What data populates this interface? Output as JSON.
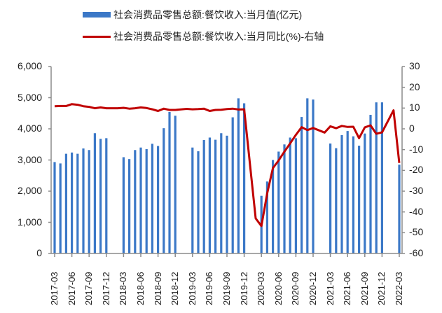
{
  "chart_data": {
    "type": "bar+line",
    "title": "",
    "legend": [
      {
        "name": "社会消费品零售总额:餐饮收入:当月值(亿元)",
        "type": "bar",
        "color": "#3b78c7"
      },
      {
        "name": "社会消费品零售总额:餐饮收入:当月同比(%)-右轴",
        "type": "line",
        "color": "#c00000"
      }
    ],
    "legend_position": "top",
    "grid": false,
    "left_axis": {
      "ylim": [
        0,
        6000
      ],
      "ticks": [
        "0",
        "1,000",
        "2,000",
        "3,000",
        "4,000",
        "5,000",
        "6,000"
      ]
    },
    "right_axis": {
      "ylim": [
        -60,
        30
      ],
      "ticks": [
        "-60",
        "-50",
        "-40",
        "-30",
        "-20",
        "-10",
        "0",
        "10",
        "20",
        "30"
      ]
    },
    "x_tick_labels": [
      "2017-03",
      "2017-06",
      "2017-09",
      "2017-12",
      "2018-03",
      "2018-06",
      "2018-09",
      "2018-12",
      "2019-03",
      "2019-06",
      "2019-09",
      "2019-12",
      "2020-03",
      "2020-06",
      "2020-09",
      "2020-12",
      "2021-03",
      "2021-06",
      "2021-09",
      "2021-12",
      "2022-03"
    ],
    "months": [
      "2017-03",
      "2017-04",
      "2017-05",
      "2017-06",
      "2017-07",
      "2017-08",
      "2017-09",
      "2017-10",
      "2017-11",
      "2017-12",
      "2018-01",
      "2018-02",
      "2018-03",
      "2018-04",
      "2018-05",
      "2018-06",
      "2018-07",
      "2018-08",
      "2018-09",
      "2018-10",
      "2018-11",
      "2018-12",
      "2019-01",
      "2019-02",
      "2019-03",
      "2019-04",
      "2019-05",
      "2019-06",
      "2019-07",
      "2019-08",
      "2019-09",
      "2019-10",
      "2019-11",
      "2019-12",
      "2020-01",
      "2020-02",
      "2020-03",
      "2020-04",
      "2020-05",
      "2020-06",
      "2020-07",
      "2020-08",
      "2020-09",
      "2020-10",
      "2020-11",
      "2020-12",
      "2021-01",
      "2021-02",
      "2021-03",
      "2021-04",
      "2021-05",
      "2021-06",
      "2021-07",
      "2021-08",
      "2021-09",
      "2021-10",
      "2021-11",
      "2021-12",
      "2022-01",
      "2022-02",
      "2022-03"
    ],
    "series": [
      {
        "name": "社会消费品零售总额:餐饮收入:当月值(亿元)",
        "axis": "left",
        "values": [
          2934,
          2890,
          3200,
          3240,
          3200,
          3370,
          3320,
          3860,
          3680,
          3700,
          null,
          null,
          3090,
          3030,
          3320,
          3400,
          3350,
          3520,
          3450,
          4020,
          4540,
          4420,
          null,
          null,
          3400,
          3280,
          3640,
          3720,
          3650,
          3860,
          3780,
          4370,
          4980,
          4820,
          null,
          null,
          1850,
          2310,
          3000,
          3270,
          3500,
          3720,
          3700,
          4380,
          4980,
          4940,
          null,
          null,
          3530,
          3380,
          3800,
          3930,
          3760,
          3460,
          3850,
          4450,
          4850,
          4850,
          null,
          null,
          2850
        ]
      },
      {
        "name": "社会消费品零售总额:餐饮收入:当月同比(%)-右轴",
        "axis": "right",
        "values": [
          10.9,
          11.0,
          11.0,
          11.9,
          11.6,
          10.9,
          10.6,
          9.9,
          10.3,
          9.9,
          null,
          9.9,
          10.1,
          9.7,
          9.9,
          10.3,
          10.0,
          9.4,
          8.6,
          9.7,
          9.1,
          9.1,
          null,
          9.6,
          9.4,
          9.5,
          9.7,
          8.6,
          9.1,
          9.2,
          9.5,
          9.7,
          9.3,
          9.4,
          null,
          -43.1,
          -46.8,
          -31.1,
          -18.9,
          -15.2,
          -11.0,
          -7.0,
          -2.9,
          0.8,
          -0.6,
          0.4,
          null,
          -1.8,
          1.2,
          0.3,
          1.4,
          0.9,
          1.0,
          -4.5,
          0.7,
          1.7,
          -2.4,
          -1.7,
          null,
          8.9,
          -16.4
        ]
      }
    ]
  }
}
